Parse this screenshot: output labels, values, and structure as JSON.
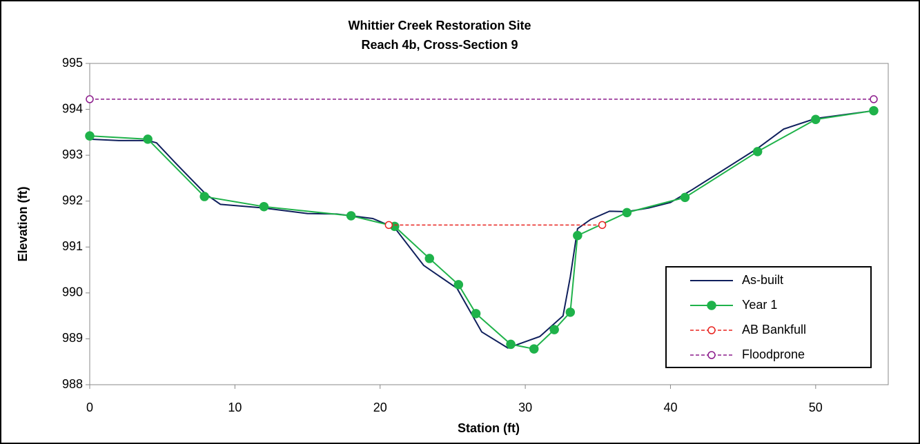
{
  "chart_data": {
    "type": "line",
    "title": "Whittier Creek Restoration Site",
    "subtitle": "Reach 4b, Cross-Section 9",
    "x_label": "Station (ft)",
    "y_label": "Elevation (ft)",
    "xlim": [
      0,
      55
    ],
    "xticks": [
      0,
      10,
      20,
      30,
      40,
      50
    ],
    "ylim": [
      988,
      995
    ],
    "yticks": [
      988,
      989,
      990,
      991,
      992,
      993,
      994,
      995
    ],
    "grid": false,
    "legend": "lower right",
    "series": [
      {
        "name": "As-built",
        "color": "#0f1f5c",
        "marker": "none",
        "dashed": false,
        "x": [
          0,
          2,
          4,
          4.6,
          6,
          8,
          9,
          12,
          15,
          17,
          19.5,
          21,
          23,
          25.3,
          27,
          28.8,
          31,
          32.6,
          33.1,
          33.6,
          34.5,
          35.8,
          37,
          38.5,
          40,
          41.5,
          44,
          46,
          47.8,
          50,
          54
        ],
        "values": [
          993.35,
          993.32,
          993.32,
          993.27,
          992.8,
          992.15,
          991.93,
          991.85,
          991.73,
          991.72,
          991.62,
          991.42,
          990.6,
          990.1,
          989.15,
          988.8,
          989.05,
          989.5,
          990.35,
          991.4,
          991.6,
          991.78,
          991.77,
          991.85,
          991.97,
          992.25,
          992.75,
          993.15,
          993.57,
          993.8,
          993.97
        ]
      },
      {
        "name": "Year 1",
        "color": "#1fb24a",
        "marker": "filled",
        "dashed": false,
        "x": [
          0,
          4,
          7.9,
          12,
          18,
          21,
          23.4,
          25.4,
          26.6,
          29,
          30.6,
          32,
          33.1,
          33.6,
          37,
          41,
          46,
          50,
          54
        ],
        "values": [
          993.42,
          993.35,
          992.1,
          991.88,
          991.68,
          991.45,
          990.75,
          990.18,
          989.55,
          988.88,
          988.78,
          989.2,
          989.58,
          991.25,
          991.75,
          992.08,
          993.08,
          993.78,
          993.97
        ]
      },
      {
        "name": "AB Bankfull",
        "color": "#e8231f",
        "marker": "open",
        "dashed": true,
        "x": [
          20.6,
          35.3
        ],
        "values": [
          991.48,
          991.48
        ]
      },
      {
        "name": "Floodprone",
        "color": "#8b1a8b",
        "marker": "open",
        "dashed": true,
        "x": [
          0,
          54
        ],
        "values": [
          994.22,
          994.22
        ]
      }
    ]
  }
}
